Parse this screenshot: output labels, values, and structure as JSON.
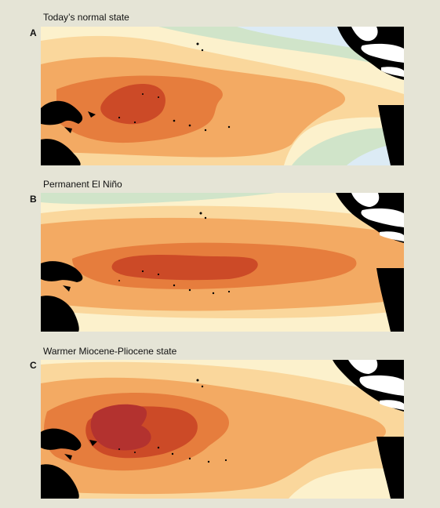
{
  "panels": [
    {
      "letter": "A",
      "title": "Today’s normal state"
    },
    {
      "letter": "B",
      "title": "Permanent El Niño"
    },
    {
      "letter": "C",
      "title": "Warmer Miocene-Pliocene state"
    }
  ],
  "colors": {
    "background": "#e5e4d6",
    "land": "#000000",
    "caribbean_land": "#ffffff",
    "cold_blue": "#dcebf5",
    "cool_green": "#d0e4c9",
    "pale_yellow": "#fcf1cc",
    "light_orange": "#fad79c",
    "orange": "#f3aa63",
    "dark_orange": "#e67d3d",
    "red": "#cc4a27",
    "deep_red": "#b3322f"
  }
}
